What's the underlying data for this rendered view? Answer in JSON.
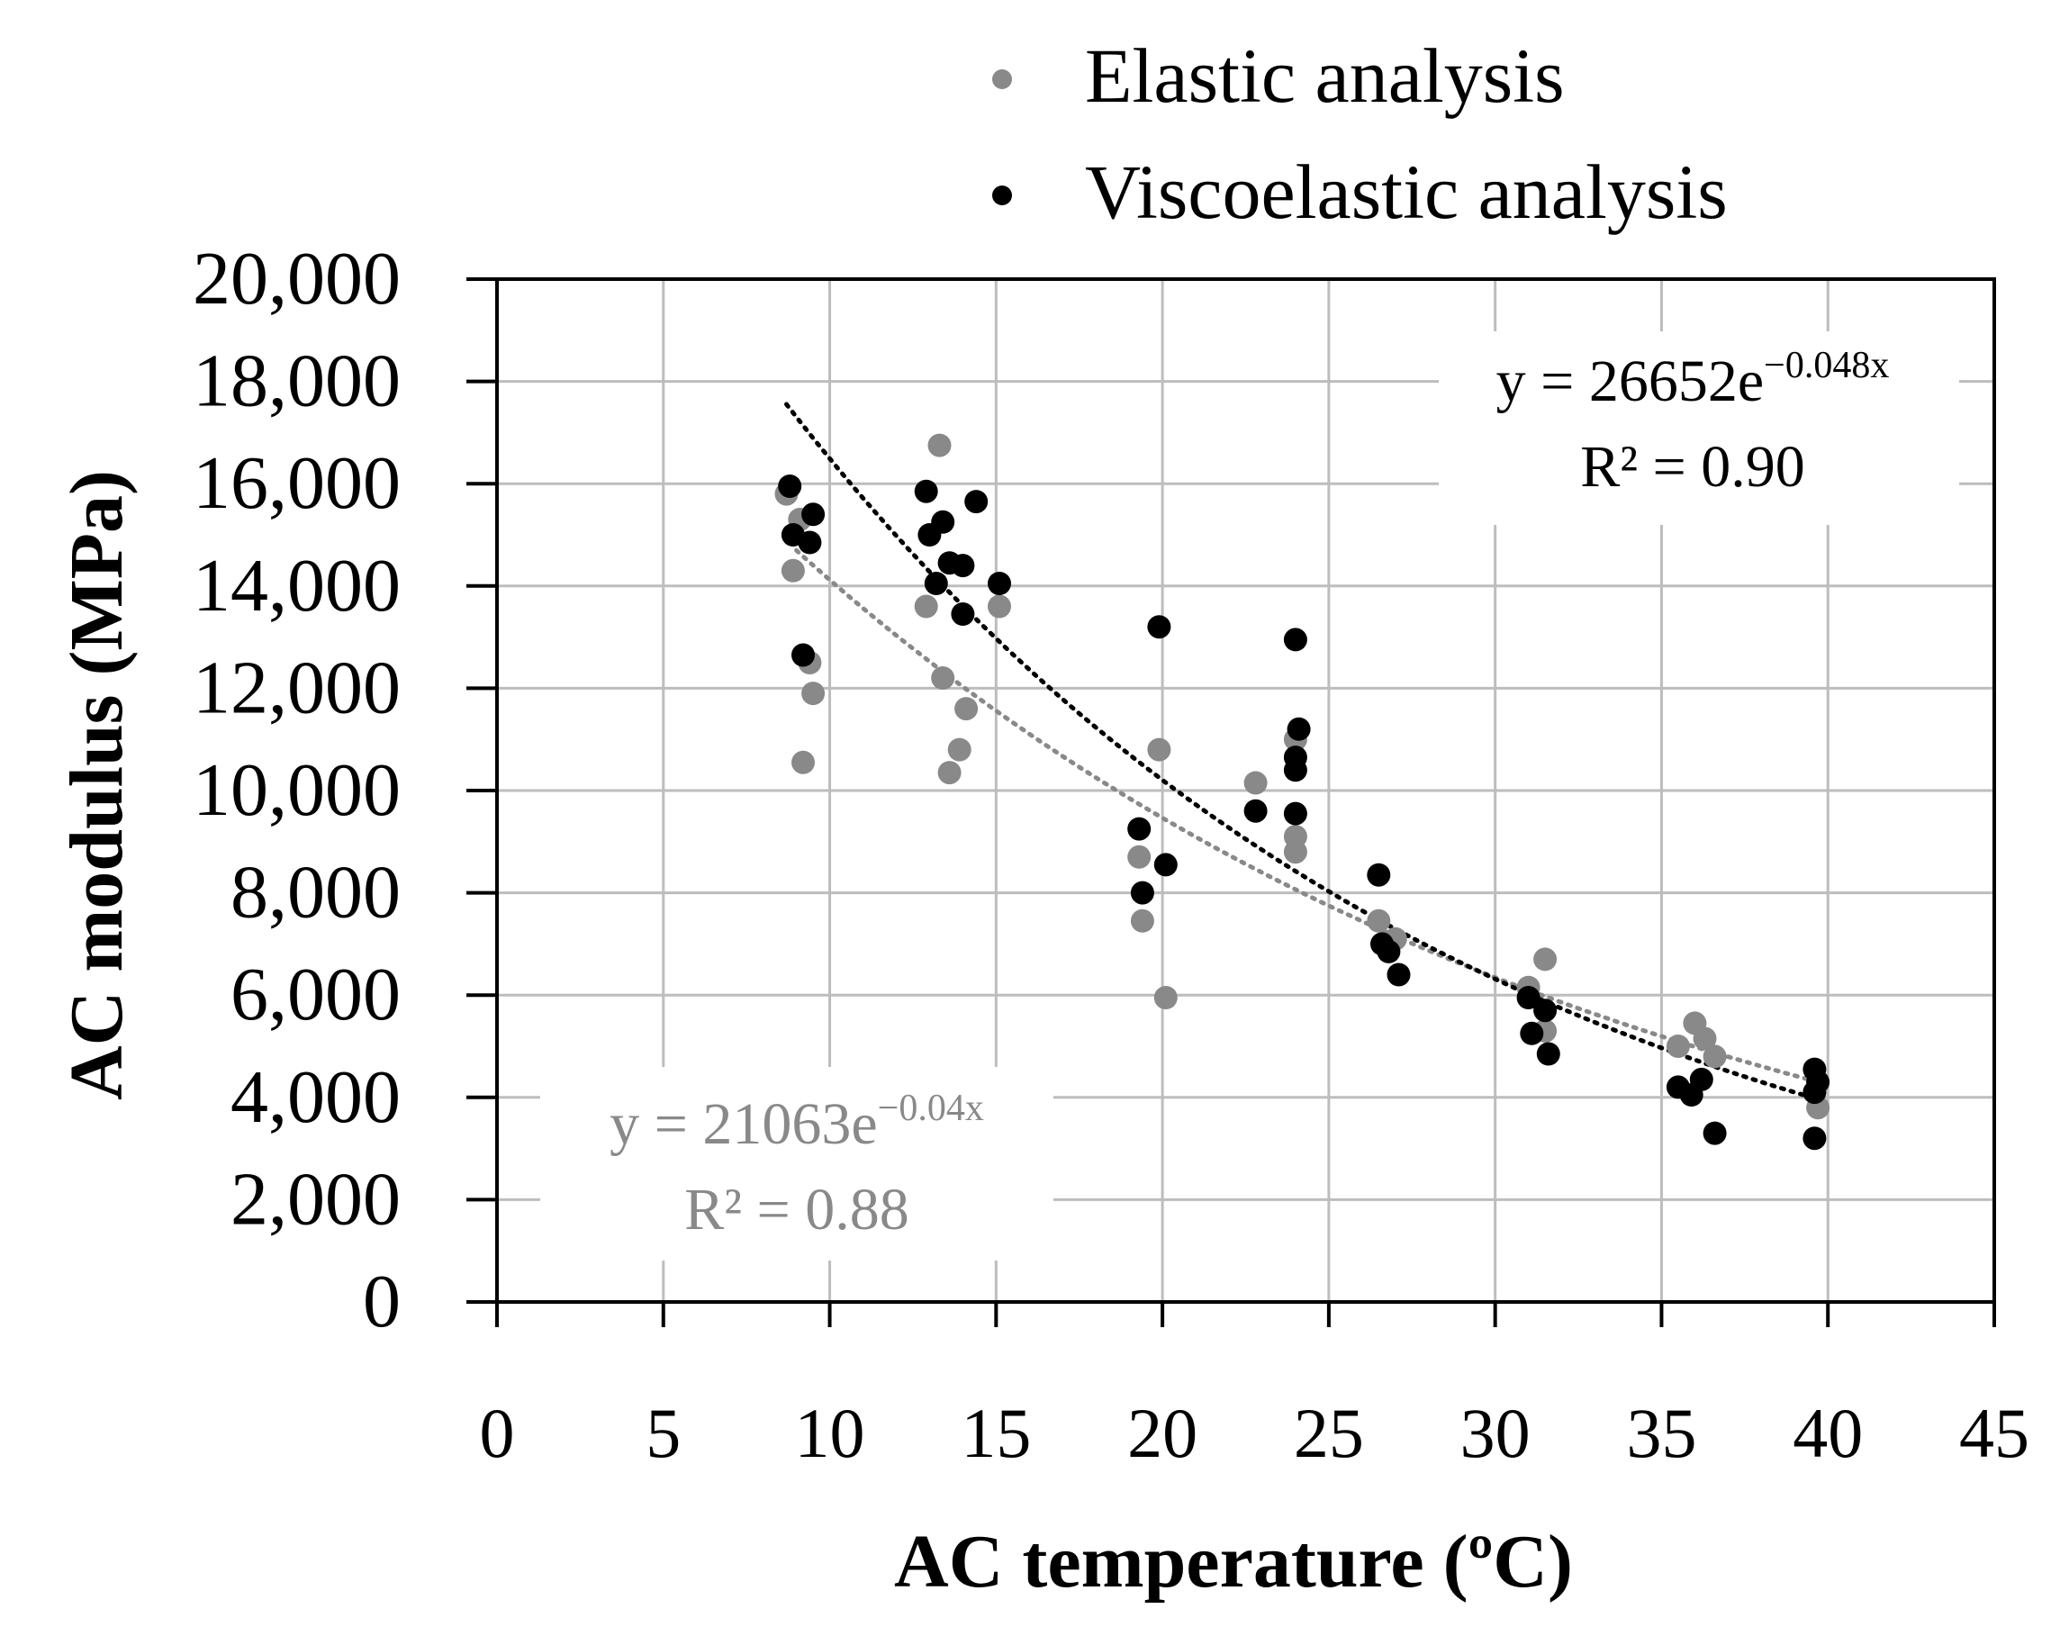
{
  "chart_data": {
    "type": "scatter",
    "xlabel": "AC temperature (ºC)",
    "ylabel": "AC modulus (MPa)",
    "xlim": [
      0,
      45
    ],
    "ylim": [
      0,
      20000
    ],
    "x_ticks": [
      0,
      5,
      10,
      15,
      20,
      25,
      30,
      35,
      40,
      45
    ],
    "y_ticks": [
      0,
      2000,
      4000,
      6000,
      8000,
      10000,
      12000,
      14000,
      16000,
      18000,
      20000
    ],
    "x_tick_labels": [
      "0",
      "5",
      "10",
      "15",
      "20",
      "25",
      "30",
      "35",
      "40",
      "45"
    ],
    "y_tick_labels": [
      "0",
      "2,000",
      "4,000",
      "6,000",
      "8,000",
      "10,000",
      "12,000",
      "14,000",
      "16,000",
      "18,000",
      "20,000"
    ],
    "grid": true,
    "legend_position": "top-center",
    "series": [
      {
        "name": "Elastic analysis",
        "key": "elastic",
        "color": "#898989",
        "trend": {
          "a": 21063,
          "b": -0.04,
          "x_range": [
            9.0,
            39.8
          ],
          "equation_prefix": "y = 21063e",
          "equation_exp": "−0.04x",
          "r2_label": "R² = 0.88"
        },
        "points": [
          [
            8.7,
            15800
          ],
          [
            9.1,
            15300
          ],
          [
            8.9,
            14300
          ],
          [
            9.4,
            12500
          ],
          [
            9.5,
            11900
          ],
          [
            9.2,
            10550
          ],
          [
            13.3,
            16750
          ],
          [
            12.9,
            13600
          ],
          [
            13.4,
            12200
          ],
          [
            14.1,
            11600
          ],
          [
            13.9,
            10800
          ],
          [
            13.6,
            10350
          ],
          [
            15.1,
            13600
          ],
          [
            19.9,
            10800
          ],
          [
            19.3,
            8700
          ],
          [
            19.4,
            7450
          ],
          [
            20.1,
            5950
          ],
          [
            22.8,
            10150
          ],
          [
            24.0,
            11000
          ],
          [
            24.0,
            9100
          ],
          [
            24.0,
            8800
          ],
          [
            26.5,
            7450
          ],
          [
            27.0,
            7100
          ],
          [
            31.0,
            6150
          ],
          [
            31.5,
            6700
          ],
          [
            31.5,
            5300
          ],
          [
            35.5,
            5000
          ],
          [
            36.0,
            5450
          ],
          [
            36.3,
            5150
          ],
          [
            36.6,
            4800
          ],
          [
            39.6,
            4100
          ],
          [
            39.7,
            3800
          ]
        ]
      },
      {
        "name": "Viscoelastic analysis",
        "key": "viscoelastic",
        "color": "#000000",
        "trend": {
          "a": 26652,
          "b": -0.048,
          "x_range": [
            8.7,
            39.8
          ],
          "equation_prefix": "y = 26652e",
          "equation_exp": "−0.048x",
          "r2_label": "R² = 0.90"
        },
        "points": [
          [
            8.8,
            15950
          ],
          [
            8.9,
            15000
          ],
          [
            9.5,
            15400
          ],
          [
            9.4,
            14850
          ],
          [
            9.2,
            12650
          ],
          [
            12.9,
            15850
          ],
          [
            13.0,
            15000
          ],
          [
            13.4,
            15250
          ],
          [
            13.2,
            14050
          ],
          [
            13.6,
            14450
          ],
          [
            14.0,
            14400
          ],
          [
            14.4,
            15650
          ],
          [
            14.0,
            13450
          ],
          [
            15.1,
            14050
          ],
          [
            19.9,
            13200
          ],
          [
            19.3,
            9250
          ],
          [
            19.4,
            8000
          ],
          [
            20.1,
            8550
          ],
          [
            22.8,
            9600
          ],
          [
            24.0,
            12950
          ],
          [
            24.1,
            11200
          ],
          [
            24.0,
            10650
          ],
          [
            24.0,
            10400
          ],
          [
            24.0,
            9550
          ],
          [
            26.5,
            8350
          ],
          [
            26.6,
            7000
          ],
          [
            26.8,
            6850
          ],
          [
            27.1,
            6400
          ],
          [
            31.0,
            5950
          ],
          [
            31.5,
            5700
          ],
          [
            31.1,
            5250
          ],
          [
            31.6,
            4850
          ],
          [
            35.5,
            4200
          ],
          [
            35.9,
            4050
          ],
          [
            36.2,
            4350
          ],
          [
            36.6,
            3300
          ],
          [
            39.6,
            4550
          ],
          [
            39.7,
            4300
          ],
          [
            39.6,
            4100
          ],
          [
            39.6,
            3200
          ]
        ]
      }
    ]
  }
}
